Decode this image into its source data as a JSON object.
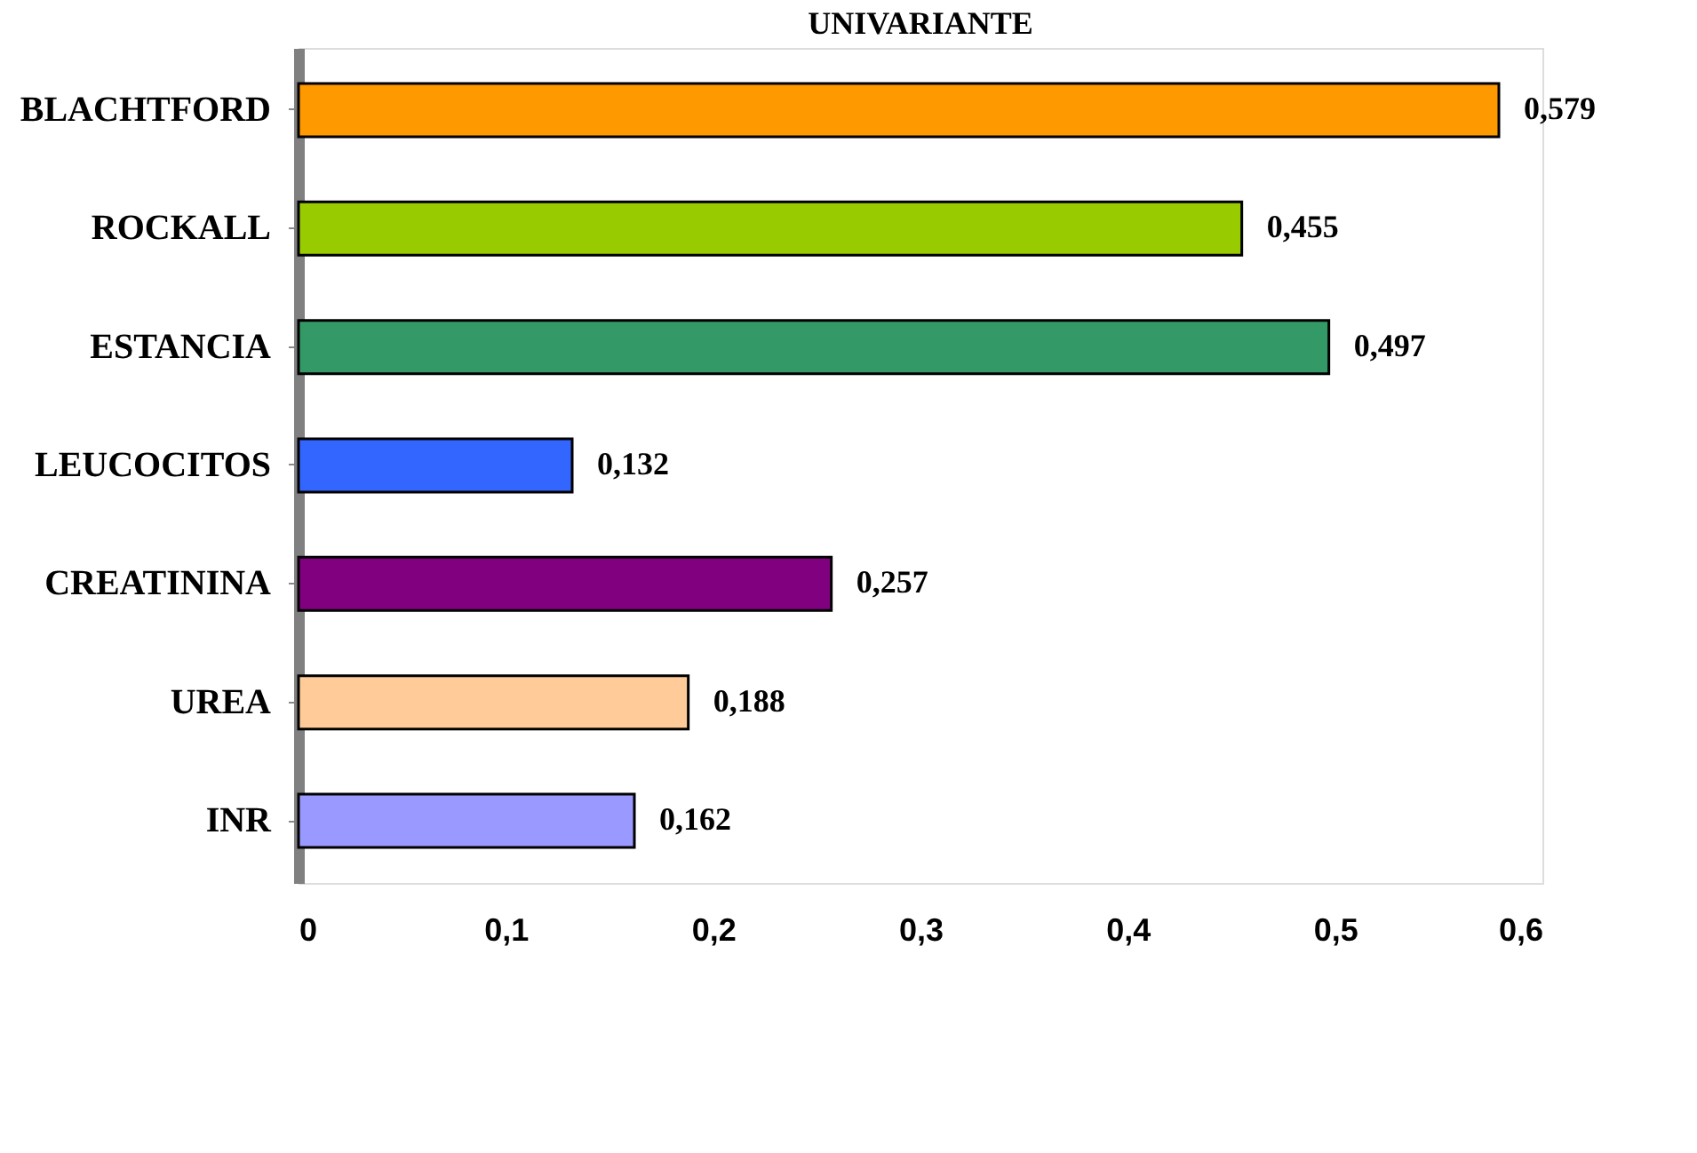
{
  "chart_data": {
    "type": "bar",
    "orientation": "horizontal",
    "title": "UNIVARIANTE",
    "categories": [
      "BLACHTFORD",
      "ROCKALL",
      "ESTANCIA",
      "LEUCOCITOS",
      "CREATININA",
      "UREA",
      "INR"
    ],
    "values": [
      0.579,
      0.455,
      0.497,
      0.132,
      0.257,
      0.188,
      0.162
    ],
    "colors": [
      "#ff9900",
      "#99cc00",
      "#339966",
      "#3366ff",
      "#800080",
      "#ffcc99",
      "#9999ff"
    ],
    "value_labels": [
      "0,579",
      "0,455",
      "0,497",
      "0,132",
      "0,257",
      "0,188",
      "0,162"
    ],
    "xlim": [
      0,
      0.6
    ],
    "xticks": [
      0,
      {
        "value": 0.1,
        "label": "0,1"
      },
      {
        "value": 0.2,
        "label": "0,2"
      },
      {
        "value": 0.3,
        "label": "0,3"
      },
      {
        "value": 0.4,
        "label": "0,4"
      },
      {
        "value": 0.5,
        "label": "0,5"
      },
      {
        "value": 0.6,
        "label": "0,6"
      }
    ],
    "grid": false,
    "legend": false
  }
}
